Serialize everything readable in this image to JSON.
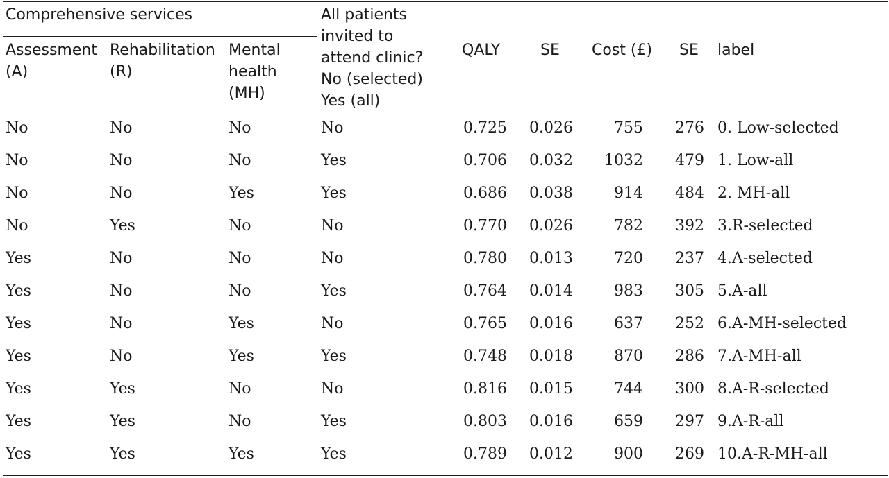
{
  "table": {
    "group_header": "Comprehensive services",
    "headers": {
      "assessment": [
        "Assessment",
        "(A)"
      ],
      "rehabilitation": [
        "Rehabilitation",
        "(R)"
      ],
      "mental_health": [
        "Mental",
        "health",
        "(MH)"
      ],
      "clinic": [
        "All patients",
        "invited to",
        "attend clinic?",
        "No (selected)",
        "Yes (all)"
      ],
      "qaly": "QALY",
      "se1": "SE",
      "cost": "Cost (£)",
      "se2": "SE",
      "label": "label"
    },
    "rows": [
      {
        "a": "No",
        "r": "No",
        "mh": "No",
        "clinic": "No",
        "qaly": "0.725",
        "se1": "0.026",
        "cost": "755",
        "se2": "276",
        "label": "0. Low-selected"
      },
      {
        "a": "No",
        "r": "No",
        "mh": "No",
        "clinic": "Yes",
        "qaly": "0.706",
        "se1": "0.032",
        "cost": "1032",
        "se2": "479",
        "label": "1. Low-all"
      },
      {
        "a": "No",
        "r": "No",
        "mh": "Yes",
        "clinic": "Yes",
        "qaly": "0.686",
        "se1": "0.038",
        "cost": "914",
        "se2": "484",
        "label": "2. MH-all"
      },
      {
        "a": "No",
        "r": "Yes",
        "mh": "No",
        "clinic": "No",
        "qaly": "0.770",
        "se1": "0.026",
        "cost": "782",
        "se2": "392",
        "label": "3.R-selected"
      },
      {
        "a": "Yes",
        "r": "No",
        "mh": "No",
        "clinic": "No",
        "qaly": "0.780",
        "se1": "0.013",
        "cost": "720",
        "se2": "237",
        "label": "4.A-selected"
      },
      {
        "a": "Yes",
        "r": "No",
        "mh": "No",
        "clinic": "Yes",
        "qaly": "0.764",
        "se1": "0.014",
        "cost": "983",
        "se2": "305",
        "label": "5.A-all"
      },
      {
        "a": "Yes",
        "r": "No",
        "mh": "Yes",
        "clinic": "No",
        "qaly": "0.765",
        "se1": "0.016",
        "cost": "637",
        "se2": "252",
        "label": "6.A-MH-selected"
      },
      {
        "a": "Yes",
        "r": "No",
        "mh": "Yes",
        "clinic": "Yes",
        "qaly": "0.748",
        "se1": "0.018",
        "cost": "870",
        "se2": "286",
        "label": "7.A-MH-all"
      },
      {
        "a": "Yes",
        "r": "Yes",
        "mh": "No",
        "clinic": "No",
        "qaly": "0.816",
        "se1": "0.015",
        "cost": "744",
        "se2": "300",
        "label": "8.A-R-selected"
      },
      {
        "a": "Yes",
        "r": "Yes",
        "mh": "No",
        "clinic": "Yes",
        "qaly": "0.803",
        "se1": "0.016",
        "cost": "659",
        "se2": "297",
        "label": "9.A-R-all"
      },
      {
        "a": "Yes",
        "r": "Yes",
        "mh": "Yes",
        "clinic": "Yes",
        "qaly": "0.789",
        "se1": "0.012",
        "cost": "900",
        "se2": "269",
        "label": "10.A-R-MH-all"
      }
    ]
  }
}
